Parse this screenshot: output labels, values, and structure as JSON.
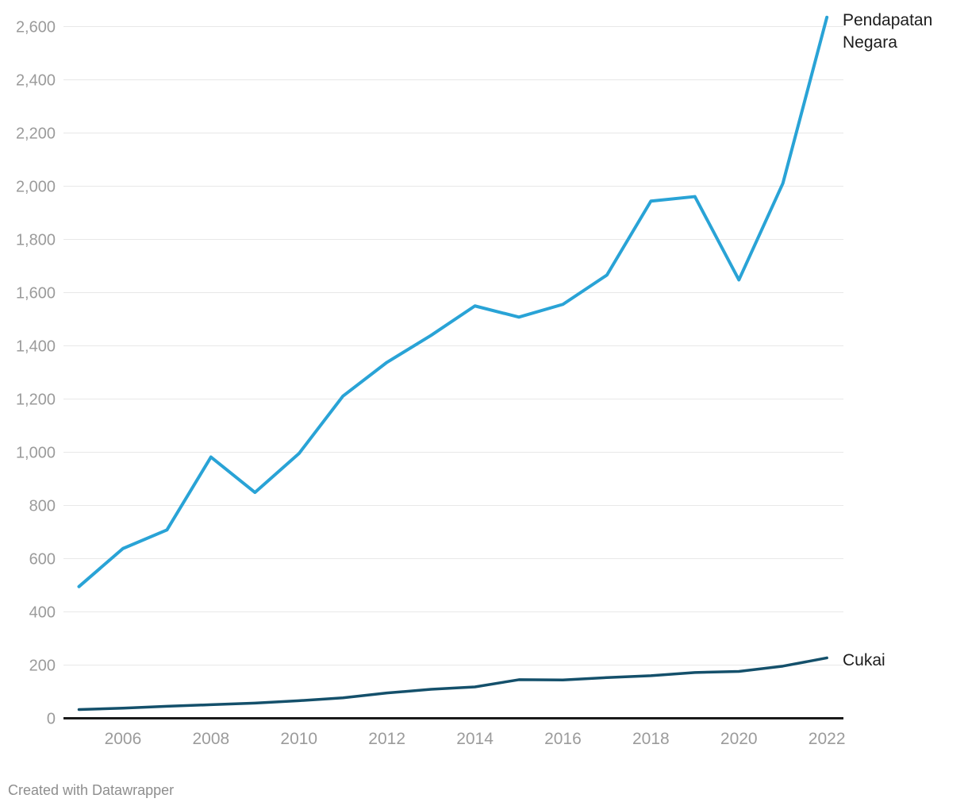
{
  "chart_data": {
    "type": "line",
    "x": [
      2005,
      2006,
      2007,
      2008,
      2009,
      2010,
      2011,
      2012,
      2013,
      2014,
      2015,
      2016,
      2017,
      2018,
      2019,
      2020,
      2021,
      2022
    ],
    "series": [
      {
        "name": "Pendapatan Negara",
        "color": "#29a3d6",
        "stroke_width": 4,
        "values": [
          495,
          638,
          708,
          982,
          849,
          995,
          1211,
          1338,
          1439,
          1550,
          1508,
          1556,
          1666,
          1944,
          1961,
          1648,
          2011,
          2635
        ]
      },
      {
        "name": "Cukai",
        "color": "#14506b",
        "stroke_width": 3.5,
        "values": [
          33,
          38,
          45,
          51,
          57,
          66,
          77,
          95,
          109,
          118,
          145,
          144,
          153,
          160,
          172,
          176,
          196,
          227
        ]
      }
    ],
    "ylim": [
      0,
      2600
    ],
    "yticks": [
      0,
      200,
      400,
      600,
      800,
      1000,
      1200,
      1400,
      1600,
      1800,
      2000,
      2200,
      2400,
      2600
    ],
    "ytick_labels": [
      "0",
      "200",
      "400",
      "600",
      "800",
      "1,000",
      "1,200",
      "1,400",
      "1,600",
      "1,800",
      "2,000",
      "2,200",
      "2,400",
      "2,600"
    ],
    "xticks": [
      2006,
      2008,
      2010,
      2012,
      2014,
      2016,
      2018,
      2020,
      2022
    ],
    "xtick_labels": [
      "2006",
      "2008",
      "2010",
      "2012",
      "2014",
      "2016",
      "2018",
      "2020",
      "2022"
    ],
    "grid": "horizontal",
    "legend_position": "line-end-labels",
    "title": "",
    "xlabel": "",
    "ylabel": ""
  },
  "labels": {
    "pendapatan_negara": "Pendapatan Negara",
    "cukai": "Cukai"
  },
  "footer": {
    "attribution": "Created with Datawrapper"
  },
  "colors": {
    "pendapatan_line": "#29a3d6",
    "cukai_line": "#14506b",
    "grid": "#e8e8e8",
    "axis": "#1a1a1a",
    "tick_text": "#9b9b9b",
    "label_text": "#1d1d1d",
    "attribution_text": "#8e8e8e",
    "background": "#ffffff"
  }
}
